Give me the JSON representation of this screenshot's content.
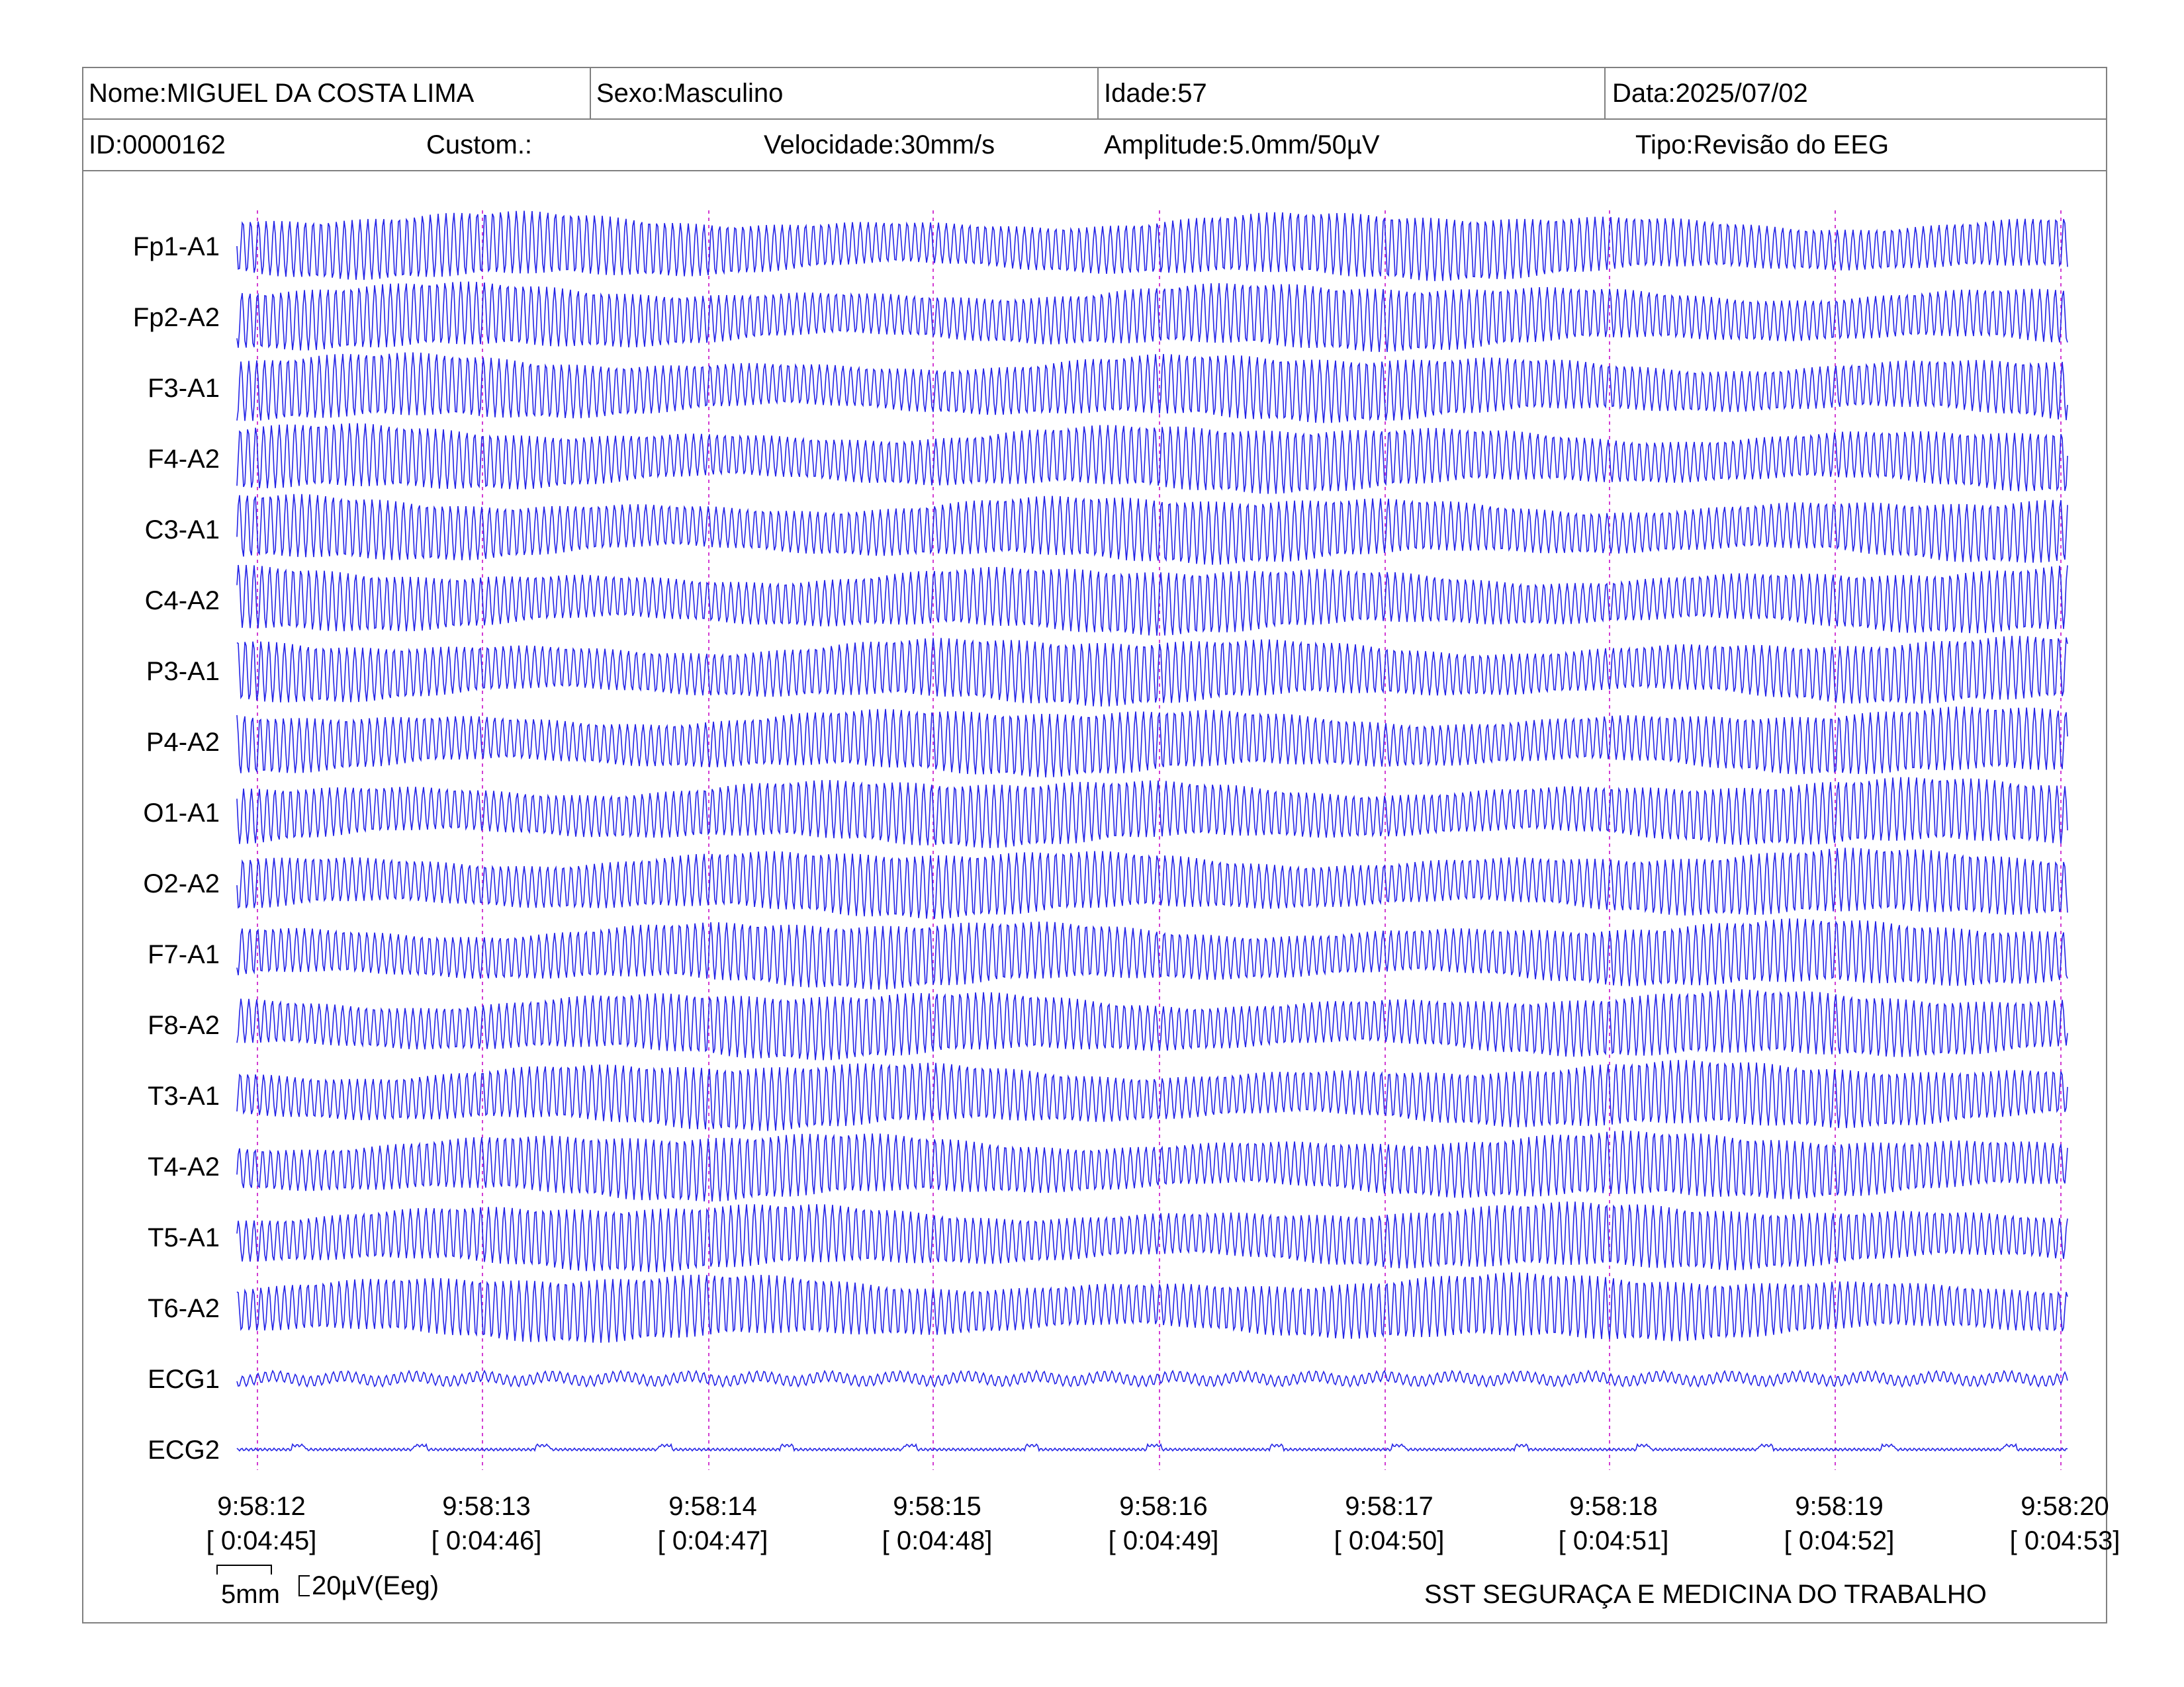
{
  "header": {
    "row1": {
      "name": "Nome:MIGUEL DA COSTA LIMA",
      "sex": "Sexo:Masculino",
      "age": "Idade:57",
      "date": "Data:2025/07/02"
    },
    "row2": {
      "id": "ID:0000162",
      "custom": "Custom.:",
      "speed": "Velocidade:30mm/s",
      "amplitude": "Amplitude:5.0mm/50µV",
      "type": "Tipo:Revisão do EEG"
    }
  },
  "channels": [
    "Fp1-A1",
    "Fp2-A2",
    "F3-A1",
    "F4-A2",
    "C3-A1",
    "C4-A2",
    "P3-A1",
    "P4-A2",
    "O1-A1",
    "O2-A2",
    "F7-A1",
    "F8-A2",
    "T3-A1",
    "T4-A2",
    "T5-A1",
    "T6-A2",
    "ECG1",
    "ECG2"
  ],
  "time_marks": [
    {
      "clock": "9:58:12",
      "elapsed": "[ 0:04:45]"
    },
    {
      "clock": "9:58:13",
      "elapsed": "[ 0:04:46]"
    },
    {
      "clock": "9:58:14",
      "elapsed": "[ 0:04:47]"
    },
    {
      "clock": "9:58:15",
      "elapsed": "[ 0:04:48]"
    },
    {
      "clock": "9:58:16",
      "elapsed": "[ 0:04:49]"
    },
    {
      "clock": "9:58:17",
      "elapsed": "[ 0:04:50]"
    },
    {
      "clock": "9:58:18",
      "elapsed": "[ 0:04:51]"
    },
    {
      "clock": "9:58:19",
      "elapsed": "[ 0:04:52]"
    },
    {
      "clock": "9:58:20",
      "elapsed": "[ 0:04:53]"
    }
  ],
  "scale": {
    "time_label": "5mm",
    "amp_label": "20µV(Eeg)"
  },
  "footer": {
    "org": "SST SEGURAÇA E MEDICINA DO TRABALHO"
  },
  "colors": {
    "trace": "#2323e6",
    "marker": "#d23cd2",
    "border": "#808080"
  }
}
